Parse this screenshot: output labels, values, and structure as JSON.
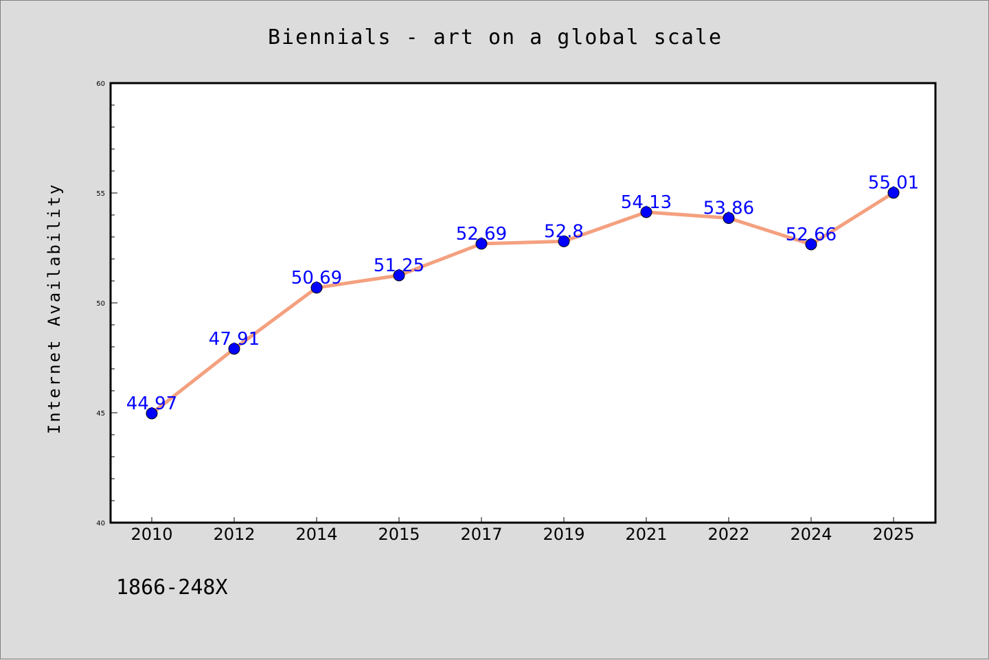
{
  "chart_data": {
    "type": "line",
    "title": "Biennials - art on a global scale",
    "xlabel": "",
    "ylabel": "Internet Availability",
    "categories": [
      "2010",
      "2012",
      "2014",
      "2015",
      "2017",
      "2019",
      "2021",
      "2022",
      "2024",
      "2025"
    ],
    "series": [
      {
        "values": [
          44.97,
          47.91,
          50.69,
          51.25,
          52.69,
          52.8,
          54.13,
          53.86,
          52.66,
          55.01
        ],
        "line_color": "#f4a07f",
        "marker_color": "#0000ff"
      }
    ],
    "data_labels": [
      "44.97",
      "47.91",
      "50.69",
      "51.25",
      "52.69",
      "52.8",
      "54.13",
      "53.86",
      "52.66",
      "55.01"
    ],
    "ylim": [
      40,
      60
    ],
    "yticks": [
      "40",
      "45",
      "50",
      "55",
      "60"
    ],
    "grid": false,
    "legend": "none",
    "footer_text": "1866-248X"
  }
}
